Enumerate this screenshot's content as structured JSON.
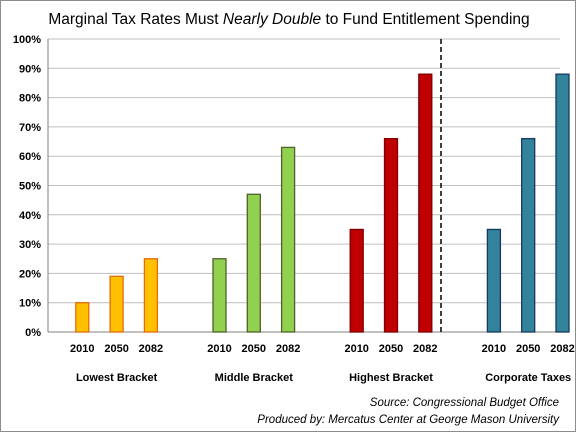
{
  "chart_data": {
    "type": "bar",
    "title": {
      "prefix": "Marginal Tax Rates Must ",
      "emphasis": "Nearly Double",
      "suffix": " to Fund Entitlement Spending"
    },
    "ylim": [
      0,
      100
    ],
    "yticks": [
      "0%",
      "10%",
      "20%",
      "30%",
      "40%",
      "50%",
      "60%",
      "70%",
      "80%",
      "90%",
      "100%"
    ],
    "grid": true,
    "groups": [
      {
        "name": "Lowest Bracket",
        "color": "#FFC000",
        "stroke": "#E46C0A",
        "categories": [
          "2010",
          "2050",
          "2082"
        ],
        "values": [
          10,
          19,
          25
        ]
      },
      {
        "name": "Middle Bracket",
        "color": "#92D050",
        "stroke": "#4F6228",
        "categories": [
          "2010",
          "2050",
          "2082"
        ],
        "values": [
          25,
          47,
          63
        ]
      },
      {
        "name": "Highest Bracket",
        "color": "#C00000",
        "stroke": "#7F0000",
        "categories": [
          "2010",
          "2050",
          "2082"
        ],
        "values": [
          35,
          66,
          88
        ]
      },
      {
        "name": "Corporate Taxes",
        "color": "#31849B",
        "stroke": "#17375E",
        "categories": [
          "2010",
          "2050",
          "2082"
        ],
        "values": [
          35,
          66,
          88
        ]
      }
    ],
    "divider": "dashed line between Highest Bracket and Corporate Taxes"
  },
  "footer": {
    "source": "Source: Congressional Budget Office",
    "produced_by": "Produced by: Mercatus Center at George Mason University"
  }
}
